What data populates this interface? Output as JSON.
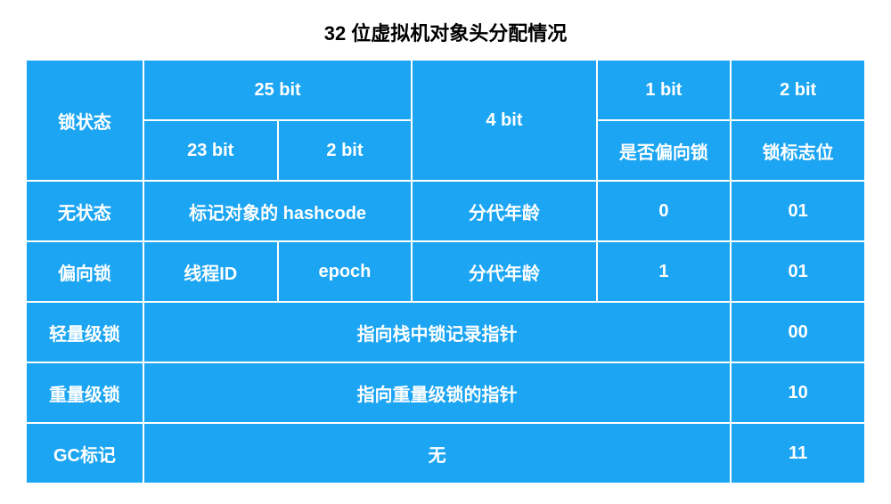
{
  "title": "32 位虚拟机对象头分配情况",
  "colors": {
    "cell_bg": "#1ba5f3",
    "border": "#ffffff",
    "text": "#ffffff",
    "title": "#000000"
  },
  "header": {
    "lock_state": "锁状态",
    "bit25": "25 bit",
    "bit4": "4 bit",
    "bit1": "1 bit",
    "bit2_flag": "2 bit",
    "bit23": "23 bit",
    "bit2": "2 bit",
    "bias_lock": "是否偏向锁",
    "lock_flag": "锁标志位"
  },
  "rows": {
    "no_state": {
      "label": "无状态",
      "hashcode": "标记对象的 hashcode",
      "age": "分代年龄",
      "bias": "0",
      "flag": "01"
    },
    "biased": {
      "label": "偏向锁",
      "thread_id": "线程ID",
      "epoch": "epoch",
      "age": "分代年龄",
      "bias": "1",
      "flag": "01"
    },
    "lightweight": {
      "label": "轻量级锁",
      "pointer": "指向栈中锁记录指针",
      "flag": "00"
    },
    "heavyweight": {
      "label": "重量级锁",
      "pointer": "指向重量级锁的指针",
      "flag": "10"
    },
    "gc": {
      "label": "GC标记",
      "pointer": "无",
      "flag": "11"
    }
  }
}
